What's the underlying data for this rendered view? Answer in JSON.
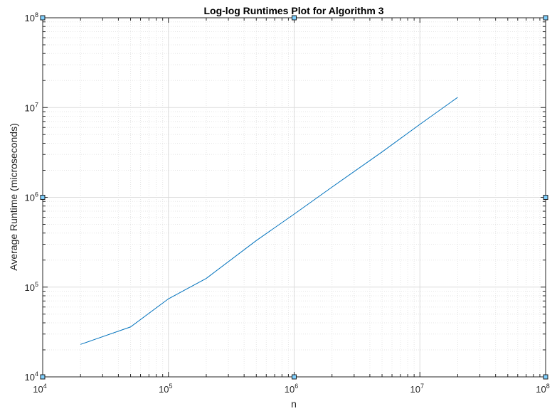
{
  "chart_data": {
    "type": "line",
    "title": "Log-log Runtimes Plot for Algorithm 3",
    "xlabel": "n",
    "ylabel": "Average Runtime (microseconds)",
    "xscale": "log",
    "yscale": "log",
    "xlim": [
      10000,
      100000000
    ],
    "ylim": [
      10000,
      100000000
    ],
    "grid": true,
    "minor_grid": true,
    "x_ticks": [
      {
        "base": "10",
        "exp": "4"
      },
      {
        "base": "10",
        "exp": "5"
      },
      {
        "base": "10",
        "exp": "6"
      },
      {
        "base": "10",
        "exp": "7"
      },
      {
        "base": "10",
        "exp": "8"
      }
    ],
    "y_ticks": [
      {
        "base": "10",
        "exp": "4"
      },
      {
        "base": "10",
        "exp": "5"
      },
      {
        "base": "10",
        "exp": "6"
      },
      {
        "base": "10",
        "exp": "7"
      },
      {
        "base": "10",
        "exp": "8"
      }
    ],
    "series": [
      {
        "color": "#0072BD",
        "x": [
          20000,
          50000,
          100000,
          200000,
          500000,
          1000000,
          2000000,
          5000000,
          10000000,
          20000000
        ],
        "y": [
          23000,
          36000,
          74000,
          125000,
          330000,
          650000,
          1300000,
          3200000,
          6500000,
          13000000
        ]
      }
    ]
  }
}
